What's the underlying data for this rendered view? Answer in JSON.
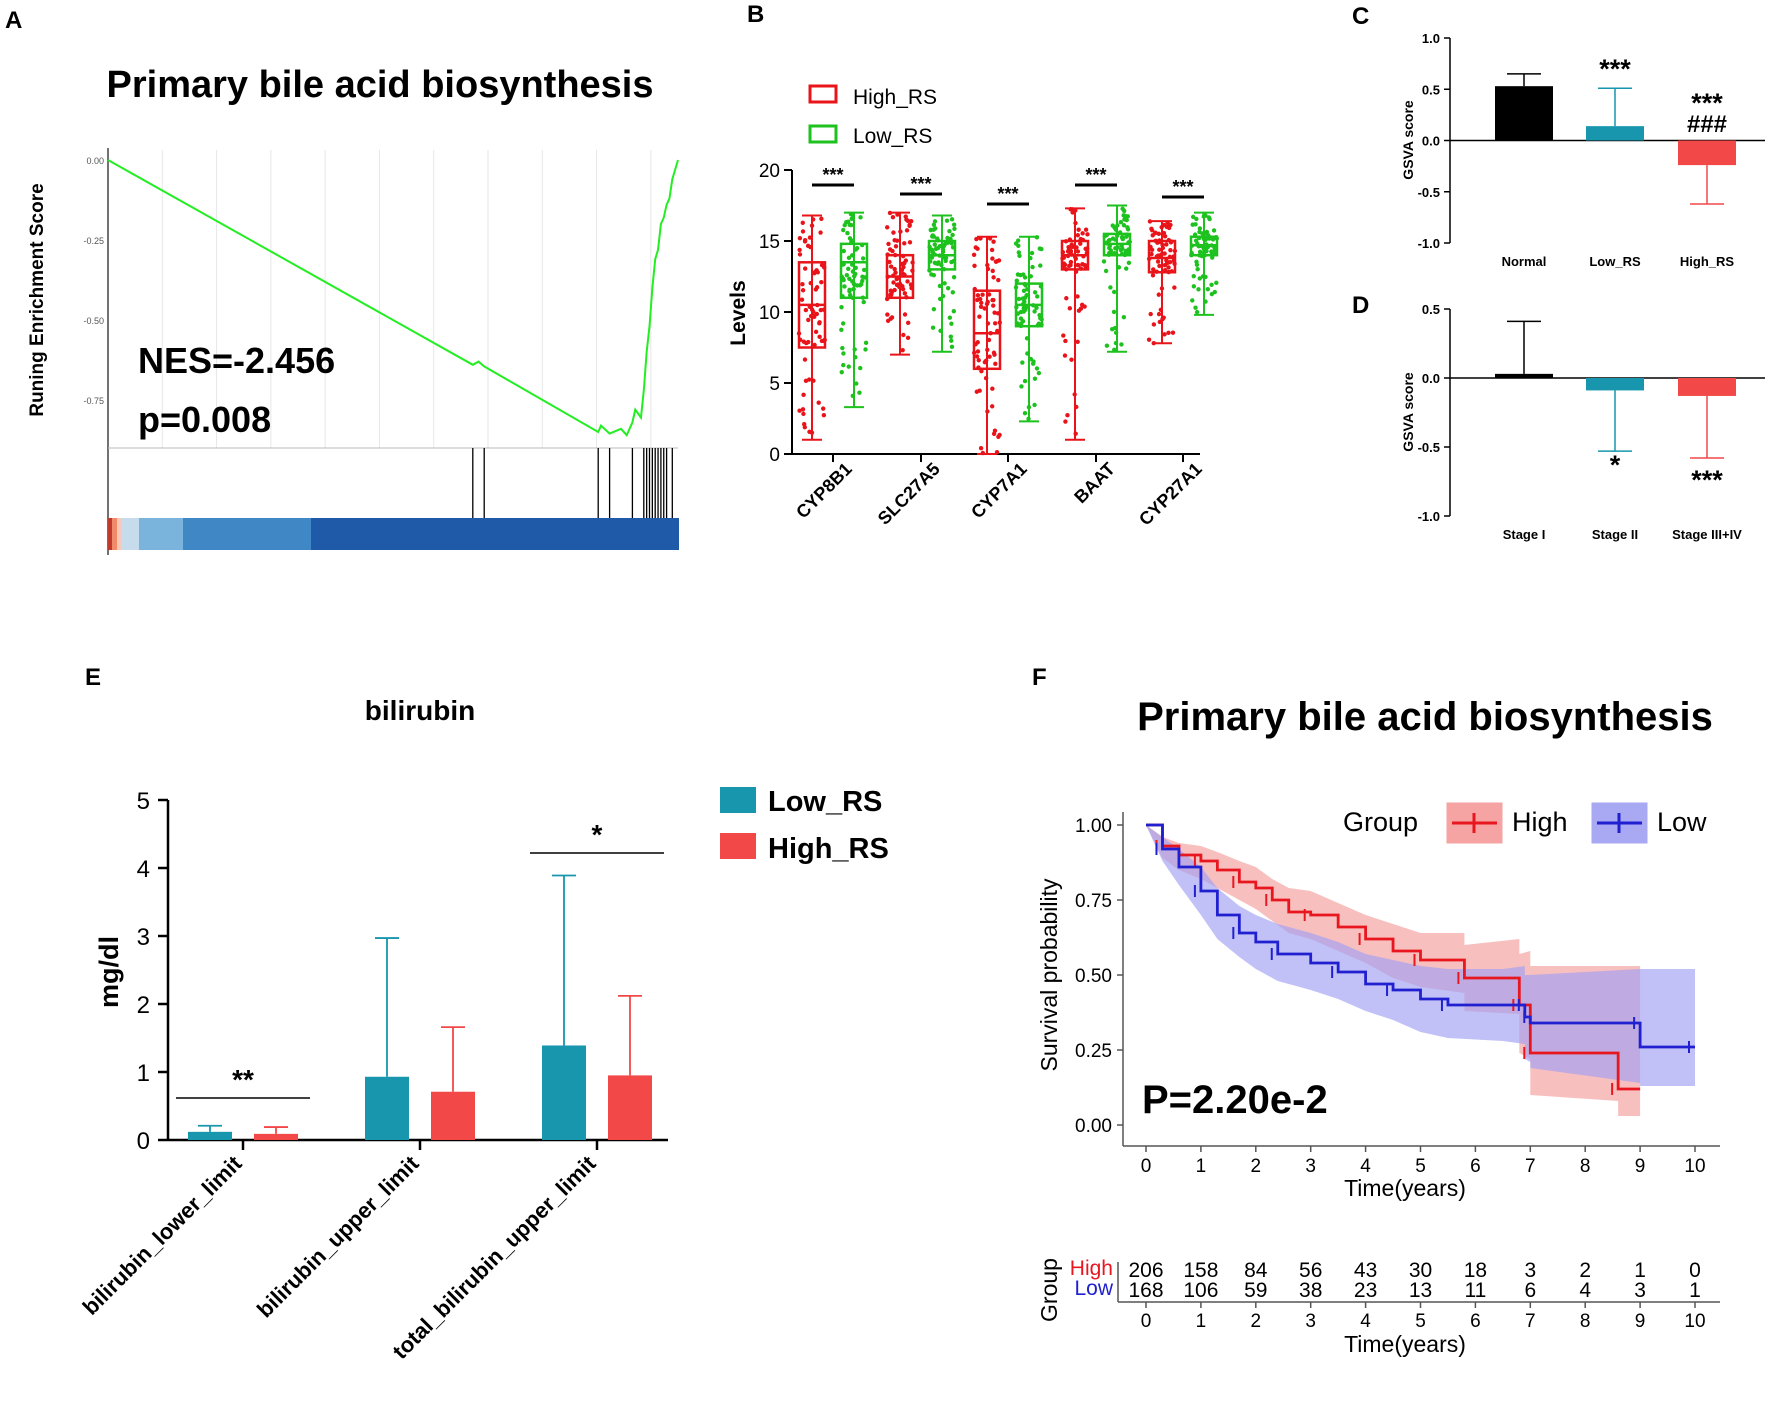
{
  "colors": {
    "high_red": "#f24848",
    "low_teal": "#1796ae",
    "normal_black": "#000000",
    "boxplot_red": "#e8141a",
    "boxplot_green": "#1ec21e",
    "gsea_line": "#22ee22",
    "km_red": "#e8171f",
    "km_blue": "#2020d0"
  },
  "chart_data": [
    {
      "panel": "A",
      "type": "line",
      "title": "Primary bile acid biosynthesis",
      "xlabel": "",
      "ylabel": "Runing Enrichment Score",
      "ylim": [
        -0.9,
        0.0
      ],
      "y_ticks": [
        "0.00",
        "-0.25",
        "-0.50",
        "-0.75"
      ],
      "y_tick_values": [
        0.0,
        -0.25,
        -0.5,
        -0.75
      ],
      "x": [
        0,
        0.64,
        0.65,
        0.66,
        0.86,
        0.865,
        0.88,
        0.9,
        0.91,
        0.92,
        0.925,
        0.935,
        0.94,
        0.945,
        0.95,
        0.955,
        0.96,
        0.965,
        0.97,
        0.975,
        0.98,
        0.985,
        0.99,
        0.995,
        1.0
      ],
      "y": [
        0.0,
        -0.64,
        -0.63,
        -0.645,
        -0.85,
        -0.83,
        -0.855,
        -0.84,
        -0.86,
        -0.82,
        -0.78,
        -0.805,
        -0.72,
        -0.6,
        -0.52,
        -0.4,
        -0.31,
        -0.28,
        -0.2,
        -0.18,
        -0.14,
        -0.12,
        -0.06,
        -0.03,
        0.0
      ],
      "hit_positions": [
        0.64,
        0.66,
        0.86,
        0.88,
        0.92,
        0.94,
        0.945,
        0.95,
        0.955,
        0.96,
        0.965,
        0.97,
        0.975,
        0.98,
        0.99
      ],
      "annotations": [
        "NES=-2.456",
        "p=0.008"
      ]
    },
    {
      "panel": "B",
      "type": "box",
      "title": "",
      "ylabel": "Levels",
      "ylim": [
        0,
        20
      ],
      "y_ticks": [
        "0",
        "5",
        "10",
        "15",
        "20"
      ],
      "categories": [
        "CYP8B1",
        "SLC27A5",
        "CYP7A1",
        "BAAT",
        "CYP27A1"
      ],
      "series": [
        {
          "name": "High_RS",
          "boxes": [
            {
              "min": 1.0,
              "q1": 7.5,
              "median": 10.5,
              "q3": 13.5,
              "max": 16.8
            },
            {
              "min": 7.0,
              "q1": 11.0,
              "median": 12.5,
              "q3": 14.0,
              "max": 17.0
            },
            {
              "min": 0.0,
              "q1": 6.0,
              "median": 8.5,
              "q3": 11.5,
              "max": 15.3
            },
            {
              "min": 1.0,
              "q1": 13.0,
              "median": 14.0,
              "q3": 15.0,
              "max": 17.3
            },
            {
              "min": 7.8,
              "q1": 12.8,
              "median": 13.8,
              "q3": 15.0,
              "max": 16.4
            }
          ]
        },
        {
          "name": "Low_RS",
          "boxes": [
            {
              "min": 3.3,
              "q1": 11.0,
              "median": 13.5,
              "q3": 14.8,
              "max": 17.0
            },
            {
              "min": 7.2,
              "q1": 13.0,
              "median": 14.0,
              "q3": 15.0,
              "max": 16.8
            },
            {
              "min": 2.3,
              "q1": 9.0,
              "median": 10.5,
              "q3": 12.0,
              "max": 15.3
            },
            {
              "min": 7.2,
              "q1": 14.0,
              "median": 14.8,
              "q3": 15.5,
              "max": 17.5
            },
            {
              "min": 9.8,
              "q1": 14.0,
              "median": 14.7,
              "q3": 15.3,
              "max": 17.0
            }
          ]
        }
      ],
      "significance": [
        "***",
        "***",
        "***",
        "***",
        "***"
      ]
    },
    {
      "panel": "C",
      "type": "bar",
      "ylabel": "GSVA score",
      "ylim": [
        -1.0,
        1.0
      ],
      "y_ticks": [
        "1.0",
        "0.5",
        "0.0",
        "-0.5",
        "-1.0"
      ],
      "categories": [
        "Normal",
        "Low_RS",
        "High_RS"
      ],
      "values": [
        0.53,
        0.14,
        -0.24
      ],
      "error_up": [
        0.12,
        0.37,
        0.0
      ],
      "error_down": [
        0.0,
        0.0,
        0.38
      ],
      "annotations": [
        "",
        "***",
        "***"
      ],
      "annotations_2": [
        "",
        "",
        "###"
      ]
    },
    {
      "panel": "D",
      "type": "bar",
      "ylabel": "GSVA score",
      "ylim": [
        -1.0,
        0.5
      ],
      "y_ticks": [
        "0.5",
        "0.0",
        "-0.5",
        "-1.0"
      ],
      "categories": [
        "Stage I",
        "Stage II",
        "Stage III+IV"
      ],
      "values": [
        0.03,
        -0.09,
        -0.13
      ],
      "error_up": [
        0.38,
        0.0,
        0.0
      ],
      "error_down": [
        0.0,
        0.44,
        0.45
      ],
      "annotations": [
        "",
        "*",
        "***"
      ]
    },
    {
      "panel": "E",
      "type": "bar",
      "title": "bilirubin",
      "ylabel": "mg/dl",
      "ylim": [
        0,
        5
      ],
      "y_ticks": [
        "0",
        "1",
        "2",
        "3",
        "4",
        "5"
      ],
      "categories": [
        "bilirubin_lower_limit",
        "bilirubin_upper_limit",
        "total_bilirubin_upper_limit"
      ],
      "series": [
        {
          "name": "Low_RS",
          "values": [
            0.12,
            0.93,
            1.39
          ],
          "error_up": [
            0.09,
            2.04,
            2.5
          ]
        },
        {
          "name": "High_RS",
          "values": [
            0.09,
            0.71,
            0.95
          ],
          "error_up": [
            0.1,
            0.95,
            1.17
          ]
        }
      ],
      "significance": [
        "**",
        "",
        "*"
      ]
    },
    {
      "panel": "F",
      "type": "line",
      "title": "Primary bile acid biosynthesis",
      "xlabel": "Time(years)",
      "ylabel": "Survival probability",
      "xlim": [
        0,
        10
      ],
      "ylim": [
        0,
        1
      ],
      "x_ticks": [
        "0",
        "1",
        "2",
        "3",
        "4",
        "5",
        "6",
        "7",
        "8",
        "9",
        "10"
      ],
      "y_ticks": [
        "0.00",
        "0.25",
        "0.50",
        "0.75",
        "1.00"
      ],
      "legend_title": "Group",
      "series": [
        {
          "name": "High",
          "x": [
            0,
            0.3,
            0.6,
            1.0,
            1.3,
            1.7,
            2.0,
            2.3,
            2.6,
            3.0,
            3.5,
            4.0,
            4.5,
            5.0,
            5.8,
            5.8,
            6.8,
            6.8,
            7.0,
            7.0,
            8.6,
            8.6,
            9.0
          ],
          "y": [
            1.0,
            0.93,
            0.9,
            0.88,
            0.85,
            0.81,
            0.79,
            0.75,
            0.71,
            0.7,
            0.66,
            0.62,
            0.58,
            0.55,
            0.54,
            0.49,
            0.49,
            0.4,
            0.4,
            0.24,
            0.24,
            0.12,
            0.12
          ],
          "lower": [
            1.0,
            0.89,
            0.85,
            0.82,
            0.79,
            0.75,
            0.72,
            0.68,
            0.64,
            0.62,
            0.58,
            0.54,
            0.49,
            0.46,
            0.44,
            0.38,
            0.37,
            0.24,
            0.22,
            0.1,
            0.08,
            0.03,
            0.03
          ],
          "upper": [
            1.0,
            0.96,
            0.94,
            0.93,
            0.91,
            0.88,
            0.86,
            0.82,
            0.79,
            0.78,
            0.74,
            0.7,
            0.67,
            0.64,
            0.64,
            0.6,
            0.62,
            0.57,
            0.58,
            0.53,
            0.53,
            0.53,
            0.53
          ]
        },
        {
          "name": "Low",
          "x": [
            0,
            0.3,
            0.6,
            1.0,
            1.3,
            1.7,
            2.0,
            2.4,
            3.0,
            3.5,
            4.0,
            4.5,
            5.0,
            5.5,
            6.5,
            6.9,
            6.9,
            7.0,
            7.0,
            9.0,
            9.0,
            10.0
          ],
          "y": [
            1.0,
            0.92,
            0.86,
            0.78,
            0.7,
            0.64,
            0.61,
            0.57,
            0.54,
            0.51,
            0.47,
            0.45,
            0.42,
            0.4,
            0.4,
            0.4,
            0.36,
            0.36,
            0.34,
            0.34,
            0.26,
            0.26
          ],
          "lower": [
            1.0,
            0.88,
            0.8,
            0.7,
            0.62,
            0.56,
            0.52,
            0.48,
            0.45,
            0.42,
            0.38,
            0.35,
            0.31,
            0.29,
            0.28,
            0.27,
            0.22,
            0.21,
            0.19,
            0.14,
            0.13,
            0.13
          ],
          "upper": [
            1.0,
            0.96,
            0.92,
            0.86,
            0.79,
            0.73,
            0.7,
            0.67,
            0.64,
            0.61,
            0.57,
            0.55,
            0.53,
            0.52,
            0.52,
            0.53,
            0.5,
            0.5,
            0.5,
            0.52,
            0.52,
            0.52
          ]
        }
      ],
      "annotations": [
        "P=2.20e-2"
      ],
      "risk_table": {
        "title": "Group",
        "xlabel": "Time(years)",
        "rows": [
          {
            "name": "High",
            "counts": [
              "206",
              "158",
              "84",
              "56",
              "43",
              "30",
              "18",
              "3",
              "2",
              "1",
              "0"
            ]
          },
          {
            "name": "Low",
            "counts": [
              "168",
              "106",
              "59",
              "38",
              "23",
              "13",
              "11",
              "6",
              "4",
              "3",
              "1"
            ]
          }
        ]
      }
    }
  ],
  "panels": [
    "A",
    "B",
    "C",
    "D",
    "E",
    "F"
  ]
}
